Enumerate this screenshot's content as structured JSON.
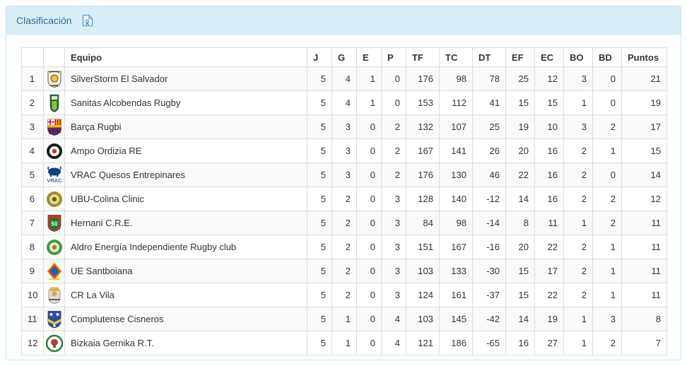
{
  "panel": {
    "title": "Clasificación",
    "export_icon": "excel-file-icon"
  },
  "colors": {
    "heading_bg": "#d9edf7",
    "panel_border": "#bce8f1",
    "heading_text": "#31708f",
    "table_border": "#dddddd",
    "row_stripe": "#f9f9f9",
    "body_text": "#333333"
  },
  "table": {
    "columns": [
      {
        "key": "pos",
        "label": ""
      },
      {
        "key": "logo",
        "label": ""
      },
      {
        "key": "team",
        "label": "Equipo"
      },
      {
        "key": "j",
        "label": "J"
      },
      {
        "key": "g",
        "label": "G"
      },
      {
        "key": "e",
        "label": "E"
      },
      {
        "key": "p",
        "label": "P"
      },
      {
        "key": "tf",
        "label": "TF"
      },
      {
        "key": "tc",
        "label": "TC"
      },
      {
        "key": "dt",
        "label": "DT"
      },
      {
        "key": "ef",
        "label": "EF"
      },
      {
        "key": "ec",
        "label": "EC"
      },
      {
        "key": "bo",
        "label": "BO"
      },
      {
        "key": "bd",
        "label": "BD"
      },
      {
        "key": "puntos",
        "label": "Puntos"
      }
    ],
    "rows": [
      {
        "pos": 1,
        "team": "SilverStorm El Salvador",
        "logo": {
          "icon": "silverstorm-el-salvador-crest-icon",
          "type": "crest",
          "colors": [
            "#f5efda",
            "#e8c63f",
            "#3a3524"
          ]
        },
        "stats": {
          "j": 5,
          "g": 4,
          "e": 1,
          "p": 0,
          "tf": 176,
          "tc": 98,
          "dt": 78,
          "ef": 25,
          "ec": 12,
          "bo": 3,
          "bd": 0,
          "puntos": 21
        }
      },
      {
        "pos": 2,
        "team": "Sanitas Alcobendas Rugby",
        "logo": {
          "icon": "alcobendas-crest-icon",
          "type": "shield",
          "colors": [
            "#1d6b30",
            "#8fbf3f",
            "#e9e3c8"
          ]
        },
        "stats": {
          "j": 5,
          "g": 4,
          "e": 1,
          "p": 0,
          "tf": 153,
          "tc": 112,
          "dt": 41,
          "ef": 15,
          "ec": 15,
          "bo": 1,
          "bd": 0,
          "puntos": 19
        }
      },
      {
        "pos": 3,
        "team": "Barça Rugbi",
        "logo": {
          "icon": "barca-crest-icon",
          "type": "barca",
          "colors": [
            "#a50044",
            "#004d98",
            "#edbb00",
            "#db0030"
          ]
        },
        "stats": {
          "j": 5,
          "g": 3,
          "e": 0,
          "p": 2,
          "tf": 132,
          "tc": 107,
          "dt": 25,
          "ef": 19,
          "ec": 10,
          "bo": 3,
          "bd": 2,
          "puntos": 17
        }
      },
      {
        "pos": 4,
        "team": "Ampo Ordizia RE",
        "logo": {
          "icon": "ordizia-crest-icon",
          "type": "ring",
          "colors": [
            "#1a1a1a",
            "#ffffff",
            "#c0392b"
          ]
        },
        "stats": {
          "j": 5,
          "g": 3,
          "e": 0,
          "p": 2,
          "tf": 167,
          "tc": 141,
          "dt": 26,
          "ef": 20,
          "ec": 16,
          "bo": 2,
          "bd": 1,
          "puntos": 15
        }
      },
      {
        "pos": 5,
        "team": "VRAC Quesos Entrepinares",
        "logo": {
          "icon": "vrac-bull-icon",
          "type": "bull",
          "colors": [
            "#173f7a",
            "#3f6fb0"
          ]
        },
        "stats": {
          "j": 5,
          "g": 3,
          "e": 0,
          "p": 2,
          "tf": 176,
          "tc": 130,
          "dt": 46,
          "ef": 22,
          "ec": 16,
          "bo": 2,
          "bd": 0,
          "puntos": 14
        }
      },
      {
        "pos": 6,
        "team": "UBU-Colina Clinic",
        "logo": {
          "icon": "ubu-colina-crest-icon",
          "type": "ring",
          "colors": [
            "#a08b2f",
            "#e8d98a",
            "#5c6b1f"
          ]
        },
        "stats": {
          "j": 5,
          "g": 2,
          "e": 0,
          "p": 3,
          "tf": 128,
          "tc": 140,
          "dt": -12,
          "ef": 14,
          "ec": 16,
          "bo": 2,
          "bd": 2,
          "puntos": 12
        }
      },
      {
        "pos": 7,
        "team": "Hernani C.R.E.",
        "logo": {
          "icon": "hernani-crest-icon",
          "type": "hernani",
          "colors": [
            "#c0392b",
            "#1d7a34",
            "#ffffff"
          ],
          "text": "50"
        },
        "stats": {
          "j": 5,
          "g": 2,
          "e": 0,
          "p": 3,
          "tf": 84,
          "tc": 98,
          "dt": -14,
          "ef": 8,
          "ec": 11,
          "bo": 1,
          "bd": 2,
          "puntos": 11
        }
      },
      {
        "pos": 8,
        "team": "Aldro Energía Independiente Rugby club",
        "logo": {
          "icon": "independiente-crest-icon",
          "type": "ring",
          "colors": [
            "#3f9b3f",
            "#dff0d0",
            "#b5722a"
          ]
        },
        "stats": {
          "j": 5,
          "g": 2,
          "e": 0,
          "p": 3,
          "tf": 151,
          "tc": 167,
          "dt": -16,
          "ef": 20,
          "ec": 22,
          "bo": 2,
          "bd": 1,
          "puntos": 11
        }
      },
      {
        "pos": 9,
        "team": "UE Santboiana",
        "logo": {
          "icon": "santboiana-crest-icon",
          "type": "diamond",
          "colors": [
            "#d94f1e",
            "#2a5caa",
            "#f0c53c"
          ]
        },
        "stats": {
          "j": 5,
          "g": 2,
          "e": 0,
          "p": 3,
          "tf": 103,
          "tc": 133,
          "dt": -30,
          "ef": 15,
          "ec": 17,
          "bo": 2,
          "bd": 1,
          "puntos": 11
        }
      },
      {
        "pos": 10,
        "team": "CR La Vila",
        "logo": {
          "icon": "la-vila-crest-icon",
          "type": "crown",
          "colors": [
            "#e8dcba",
            "#f0c53c",
            "#3a66b0"
          ]
        },
        "stats": {
          "j": 5,
          "g": 2,
          "e": 0,
          "p": 3,
          "tf": 124,
          "tc": 161,
          "dt": -37,
          "ef": 15,
          "ec": 22,
          "bo": 2,
          "bd": 1,
          "puntos": 11
        }
      },
      {
        "pos": 11,
        "team": "Complutense Cisneros",
        "logo": {
          "icon": "cisneros-crest-icon",
          "type": "fleur",
          "colors": [
            "#2a4fa0",
            "#f0c53c",
            "#ffffff"
          ]
        },
        "stats": {
          "j": 5,
          "g": 1,
          "e": 0,
          "p": 4,
          "tf": 103,
          "tc": 145,
          "dt": -42,
          "ef": 14,
          "ec": 19,
          "bo": 1,
          "bd": 3,
          "puntos": 8
        }
      },
      {
        "pos": 12,
        "team": "Bizkaia Gernika R.T.",
        "logo": {
          "icon": "gernika-crest-icon",
          "type": "wreath",
          "colors": [
            "#2f7a3a",
            "#ffffff",
            "#c0392b"
          ]
        },
        "stats": {
          "j": 5,
          "g": 1,
          "e": 0,
          "p": 4,
          "tf": 121,
          "tc": 186,
          "dt": -65,
          "ef": 16,
          "ec": 27,
          "bo": 1,
          "bd": 2,
          "puntos": 7
        }
      }
    ]
  }
}
